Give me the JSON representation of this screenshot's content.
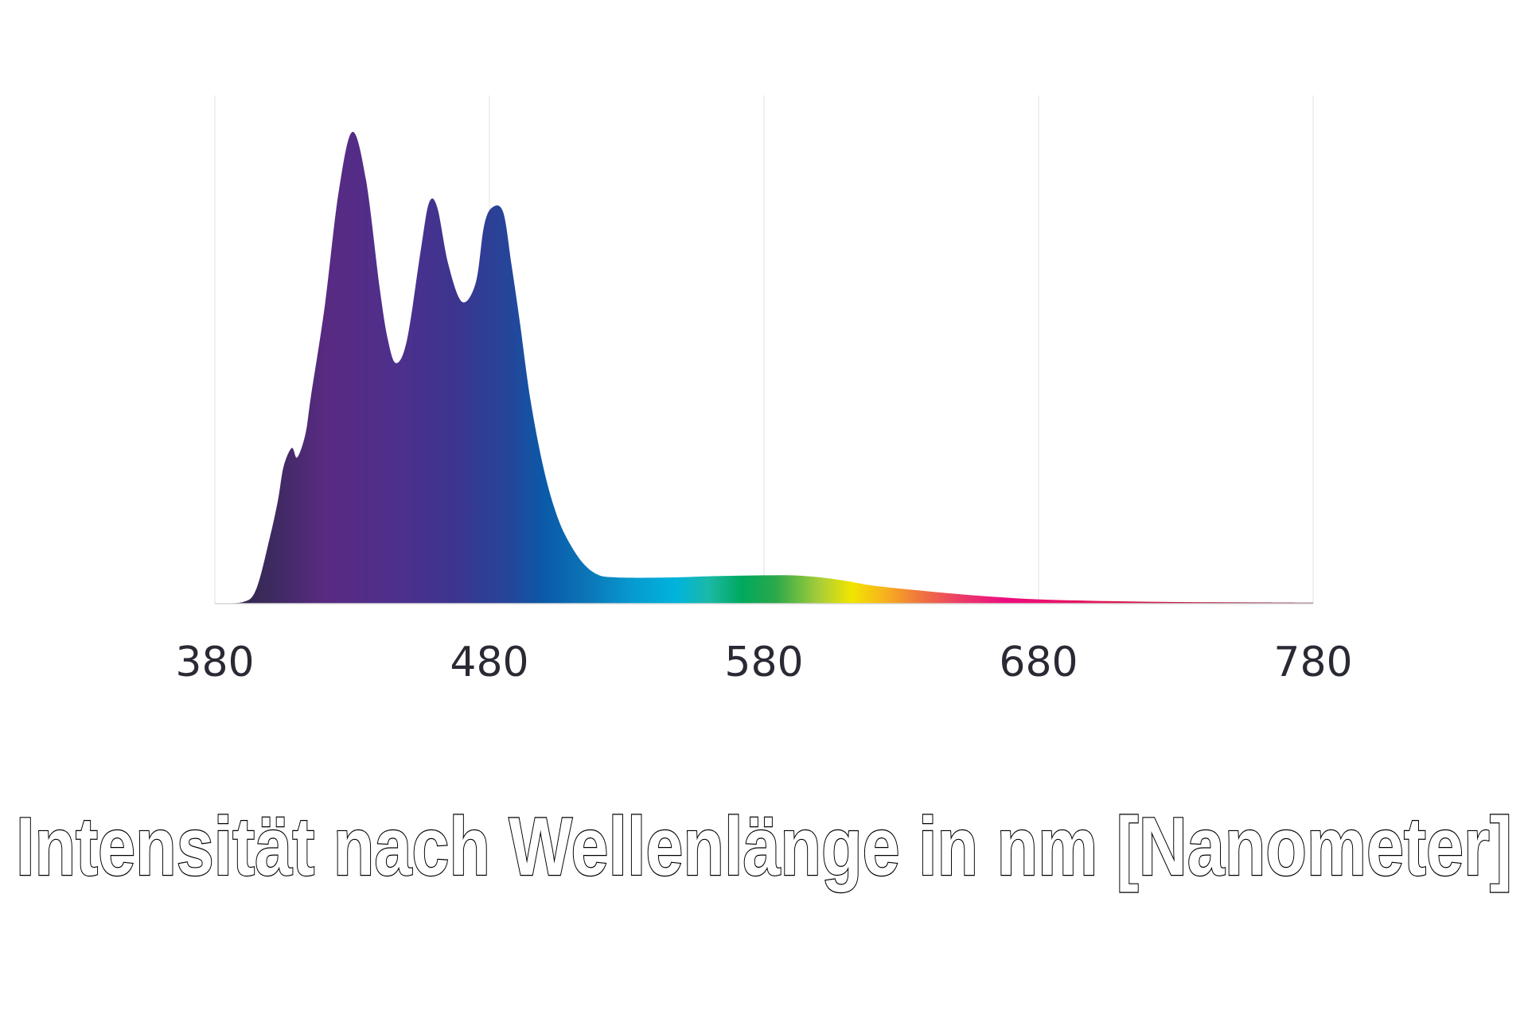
{
  "caption": "Intensität nach Wellenlänge in nm [Nanometer]",
  "chart_data": {
    "type": "area",
    "title": "",
    "xlabel": "Intensität nach Wellenlänge in nm [Nanometer]",
    "ylabel": "",
    "xlim": [
      380,
      780
    ],
    "ylim": [
      0,
      100
    ],
    "grid": true,
    "xticks": [
      380,
      480,
      580,
      680,
      780
    ],
    "xtick_labels": [
      "380",
      "480",
      "580",
      "680",
      "780"
    ],
    "fill": "visible spectrum gradient",
    "x": [
      380,
      390,
      395,
      400,
      403,
      405,
      408,
      410,
      413,
      415,
      420,
      425,
      430,
      435,
      440,
      443,
      446,
      450,
      455,
      458,
      461,
      465,
      470,
      475,
      478,
      481,
      485,
      488,
      491,
      495,
      500,
      505,
      510,
      515,
      520,
      525,
      530,
      540,
      550,
      560,
      580,
      590,
      600,
      610,
      620,
      640,
      660,
      680,
      700,
      720,
      740,
      760,
      780
    ],
    "y": [
      0,
      0.3,
      3,
      14,
      22,
      29,
      33,
      31,
      36,
      44,
      63,
      87,
      100,
      90,
      67,
      56,
      51,
      56,
      75,
      85,
      84,
      72,
      64,
      68,
      80,
      84,
      83,
      72,
      60,
      43,
      28,
      18,
      12,
      8,
      6,
      5.6,
      5.5,
      5.5,
      5.6,
      5.8,
      6,
      6,
      5.6,
      4.8,
      3.8,
      2.6,
      1.6,
      0.9,
      0.6,
      0.4,
      0.3,
      0.25,
      0.2
    ]
  }
}
